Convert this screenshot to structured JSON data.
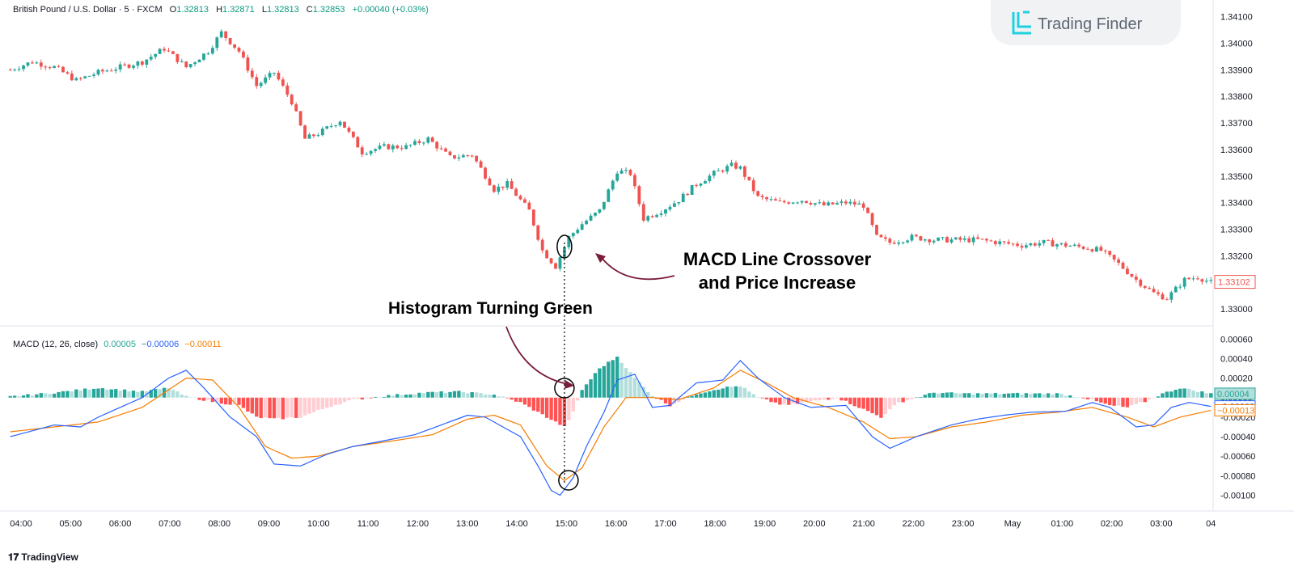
{
  "header": {
    "symbol": "British Pound / U.S. Dollar · 5 · FXCM",
    "open_label": "O",
    "open": "1.32813",
    "high_label": "H",
    "high": "1.32871",
    "low_label": "L",
    "low": "1.32813",
    "close_label": "C",
    "close": "1.32853",
    "change": "+0.00040 (+0.03%)"
  },
  "brand": {
    "name": "Trading Finder"
  },
  "footer": {
    "logo_text": "TradingView"
  },
  "annotations": {
    "crossover_line1": "MACD Line Crossover",
    "crossover_line2": "and Price Increase",
    "histogram": "Histogram Turning Green"
  },
  "macd_header": {
    "label": "MACD (12, 26, close)",
    "hist_value": "0.00005",
    "macd_value": "−0.00006",
    "signal_value": "−0.00011"
  },
  "colors": {
    "bull": "#26a69a",
    "bear": "#ef5350",
    "hist_up_strong": "#26a69a",
    "hist_up_weak": "#b2dfdb",
    "hist_down_strong": "#ff5252",
    "hist_down_weak": "#ffcdd2",
    "macd_line": "#2962ff",
    "signal_line": "#f57c00",
    "arrow": "#7b1e3a"
  },
  "chart_data": [
    {
      "type": "candlestick",
      "title": "British Pound / U.S. Dollar · 5 · FXCM",
      "x_ticks": [
        "04:00",
        "05:00",
        "06:00",
        "07:00",
        "08:00",
        "09:00",
        "10:00",
        "11:00",
        "12:00",
        "13:00",
        "14:00",
        "15:00",
        "16:00",
        "17:00",
        "18:00",
        "19:00",
        "20:00",
        "21:00",
        "22:00",
        "23:00",
        "May",
        "01:00",
        "02:00",
        "03:00",
        "04"
      ],
      "y_ticks": [
        "1.34100",
        "1.34000",
        "1.33900",
        "1.33800",
        "1.33700",
        "1.33600",
        "1.33500",
        "1.33400",
        "1.33300",
        "1.33200",
        "1.33100",
        "1.33000"
      ],
      "ylim": [
        1.3297,
        1.3412
      ],
      "last_price": "1.33102",
      "close_path": [
        [
          0,
          1.339
        ],
        [
          5,
          1.3393
        ],
        [
          10,
          1.3391
        ],
        [
          15,
          1.3386
        ],
        [
          20,
          1.3389
        ],
        [
          25,
          1.3391
        ],
        [
          30,
          1.3393
        ],
        [
          35,
          1.3398
        ],
        [
          40,
          1.3391
        ],
        [
          45,
          1.3397
        ],
        [
          48,
          1.3404
        ],
        [
          52,
          1.3397
        ],
        [
          56,
          1.3384
        ],
        [
          60,
          1.3389
        ],
        [
          64,
          1.3378
        ],
        [
          67,
          1.3364
        ],
        [
          70,
          1.3366
        ],
        [
          75,
          1.3371
        ],
        [
          80,
          1.3359
        ],
        [
          85,
          1.3361
        ],
        [
          90,
          1.3361
        ],
        [
          95,
          1.3364
        ],
        [
          100,
          1.3357
        ],
        [
          105,
          1.3358
        ],
        [
          110,
          1.3345
        ],
        [
          113,
          1.3347
        ],
        [
          118,
          1.3337
        ],
        [
          121,
          1.3322
        ],
        [
          124,
          1.3316
        ],
        [
          127,
          1.3327
        ],
        [
          130,
          1.3332
        ],
        [
          134,
          1.3337
        ],
        [
          138,
          1.3352
        ],
        [
          141,
          1.3351
        ],
        [
          144,
          1.3334
        ],
        [
          148,
          1.3337
        ],
        [
          152,
          1.3341
        ],
        [
          156,
          1.3347
        ],
        [
          160,
          1.3351
        ],
        [
          164,
          1.3354
        ],
        [
          166,
          1.3353
        ],
        [
          170,
          1.3342
        ],
        [
          175,
          1.334
        ],
        [
          180,
          1.3341
        ],
        [
          185,
          1.3339
        ],
        [
          190,
          1.334
        ],
        [
          194,
          1.3339
        ],
        [
          197,
          1.3327
        ],
        [
          200,
          1.3325
        ],
        [
          205,
          1.3327
        ],
        [
          210,
          1.3326
        ],
        [
          215,
          1.3326
        ],
        [
          220,
          1.3326
        ],
        [
          225,
          1.3325
        ],
        [
          230,
          1.3324
        ],
        [
          235,
          1.3325
        ],
        [
          240,
          1.3324
        ],
        [
          245,
          1.3323
        ],
        [
          248,
          1.3322
        ],
        [
          252,
          1.3317
        ],
        [
          256,
          1.3311
        ],
        [
          260,
          1.3306
        ],
        [
          263,
          1.3304
        ],
        [
          267,
          1.3311
        ],
        [
          270,
          1.3312
        ],
        [
          273,
          1.331
        ]
      ]
    },
    {
      "type": "line+bar",
      "title": "MACD (12, 26, close)",
      "y_ticks": [
        "0.00060",
        "0.00040",
        "0.00020",
        "0.00000",
        "-0.00020",
        "-0.00040",
        "-0.00060",
        "-0.00080",
        "-0.00100"
      ],
      "ylim": [
        -0.00112,
        0.00071
      ],
      "histogram_path": [
        [
          0,
          1e-05
        ],
        [
          10,
          5e-05
        ],
        [
          20,
          0.0001
        ],
        [
          30,
          6e-05
        ],
        [
          36,
          0.0001
        ],
        [
          40,
          1e-05
        ],
        [
          46,
          -4e-05
        ],
        [
          52,
          -8e-05
        ],
        [
          56,
          -0.0002
        ],
        [
          60,
          -0.00022
        ],
        [
          66,
          -0.0002
        ],
        [
          72,
          -0.0001
        ],
        [
          78,
          -2e-05
        ],
        [
          86,
          2e-05
        ],
        [
          94,
          5e-05
        ],
        [
          102,
          6e-05
        ],
        [
          110,
          3e-05
        ],
        [
          116,
          -5e-05
        ],
        [
          122,
          -0.0002
        ],
        [
          126,
          -0.0003
        ],
        [
          128,
          -0.00015
        ],
        [
          130,
          8e-05
        ],
        [
          134,
          0.0003
        ],
        [
          138,
          0.00042
        ],
        [
          142,
          0.0002
        ],
        [
          146,
          2e-05
        ],
        [
          150,
          -8e-05
        ],
        [
          156,
          4e-05
        ],
        [
          162,
          0.0001
        ],
        [
          166,
          0.00012
        ],
        [
          170,
          0.0
        ],
        [
          176,
          -8e-05
        ],
        [
          182,
          -4e-05
        ],
        [
          188,
          0.0
        ],
        [
          194,
          -0.00012
        ],
        [
          198,
          -0.0002
        ],
        [
          202,
          -5e-05
        ],
        [
          210,
          5e-05
        ],
        [
          218,
          4e-05
        ],
        [
          226,
          4e-05
        ],
        [
          232,
          4e-05
        ],
        [
          238,
          4e-05
        ],
        [
          244,
          0.0
        ],
        [
          250,
          -8e-05
        ],
        [
          254,
          -0.0001
        ],
        [
          258,
          -4e-05
        ],
        [
          262,
          4e-05
        ],
        [
          266,
          0.0001
        ],
        [
          273,
          4e-05
        ]
      ],
      "series": [
        {
          "values_path": [
            [
              0,
              -0.0004
            ],
            [
              10,
              -0.00028
            ],
            [
              16,
              -0.0003
            ],
            [
              20,
              -0.0002
            ],
            [
              26,
              -8e-05
            ],
            [
              30,
              0.0
            ],
            [
              36,
              0.0002
            ],
            [
              40,
              0.00028
            ],
            [
              44,
              0.0001
            ],
            [
              50,
              -0.0002
            ],
            [
              56,
              -0.0004
            ],
            [
              60,
              -0.00068
            ],
            [
              66,
              -0.0007
            ],
            [
              72,
              -0.00058
            ],
            [
              78,
              -0.0005
            ],
            [
              84,
              -0.00045
            ],
            [
              92,
              -0.00038
            ],
            [
              98,
              -0.00028
            ],
            [
              104,
              -0.00018
            ],
            [
              108,
              -0.0002
            ],
            [
              112,
              -0.0003
            ],
            [
              116,
              -0.0004
            ],
            [
              120,
              -0.0007
            ],
            [
              123,
              -0.00095
            ],
            [
              125,
              -0.001
            ],
            [
              128,
              -0.00082
            ],
            [
              131,
              -0.0005
            ],
            [
              135,
              -0.00015
            ],
            [
              138,
              0.00018
            ],
            [
              142,
              0.00024
            ],
            [
              146,
              -0.0001
            ],
            [
              150,
              -8e-05
            ],
            [
              156,
              0.00015
            ],
            [
              162,
              0.00018
            ],
            [
              166,
              0.00038
            ],
            [
              170,
              0.0002
            ],
            [
              176,
              0.0
            ],
            [
              182,
              -0.0001
            ],
            [
              190,
              -8e-05
            ],
            [
              196,
              -0.0004
            ],
            [
              200,
              -0.00052
            ],
            [
              206,
              -0.0004
            ],
            [
              214,
              -0.00028
            ],
            [
              220,
              -0.00022
            ],
            [
              226,
              -0.00018
            ],
            [
              232,
              -0.00015
            ],
            [
              240,
              -0.00014
            ],
            [
              246,
              -5e-05
            ],
            [
              250,
              -0.0001
            ],
            [
              256,
              -0.0003
            ],
            [
              260,
              -0.00028
            ],
            [
              264,
              -0.0001
            ],
            [
              268,
              -5e-05
            ],
            [
              273,
              -9e-05
            ]
          ]
        },
        {
          "values_path": [
            [
              0,
              -0.00035
            ],
            [
              10,
              -0.0003
            ],
            [
              20,
              -0.00025
            ],
            [
              30,
              -0.0001
            ],
            [
              40,
              0.0002
            ],
            [
              46,
              0.00018
            ],
            [
              52,
              -0.0001
            ],
            [
              58,
              -0.0005
            ],
            [
              64,
              -0.00062
            ],
            [
              70,
              -0.0006
            ],
            [
              78,
              -0.0005
            ],
            [
              86,
              -0.00045
            ],
            [
              96,
              -0.00038
            ],
            [
              104,
              -0.00022
            ],
            [
              110,
              -0.00018
            ],
            [
              116,
              -0.00028
            ],
            [
              122,
              -0.0007
            ],
            [
              126,
              -0.00085
            ],
            [
              130,
              -0.00072
            ],
            [
              135,
              -0.0003
            ],
            [
              140,
              0.0
            ],
            [
              146,
              0.0
            ],
            [
              152,
              -2e-05
            ],
            [
              160,
              0.0001
            ],
            [
              166,
              0.00028
            ],
            [
              172,
              0.00015
            ],
            [
              178,
              0.0
            ],
            [
              186,
              -0.0001
            ],
            [
              194,
              -0.00025
            ],
            [
              200,
              -0.00042
            ],
            [
              206,
              -0.0004
            ],
            [
              214,
              -0.0003
            ],
            [
              222,
              -0.00025
            ],
            [
              230,
              -0.00018
            ],
            [
              238,
              -0.00015
            ],
            [
              246,
              -0.0001
            ],
            [
              254,
              -0.0002
            ],
            [
              260,
              -0.0003
            ],
            [
              266,
              -0.0002
            ],
            [
              273,
              -0.00013
            ]
          ]
        }
      ],
      "labels": [
        "0.00004",
        "−0.00009",
        "−0.00013"
      ]
    }
  ]
}
